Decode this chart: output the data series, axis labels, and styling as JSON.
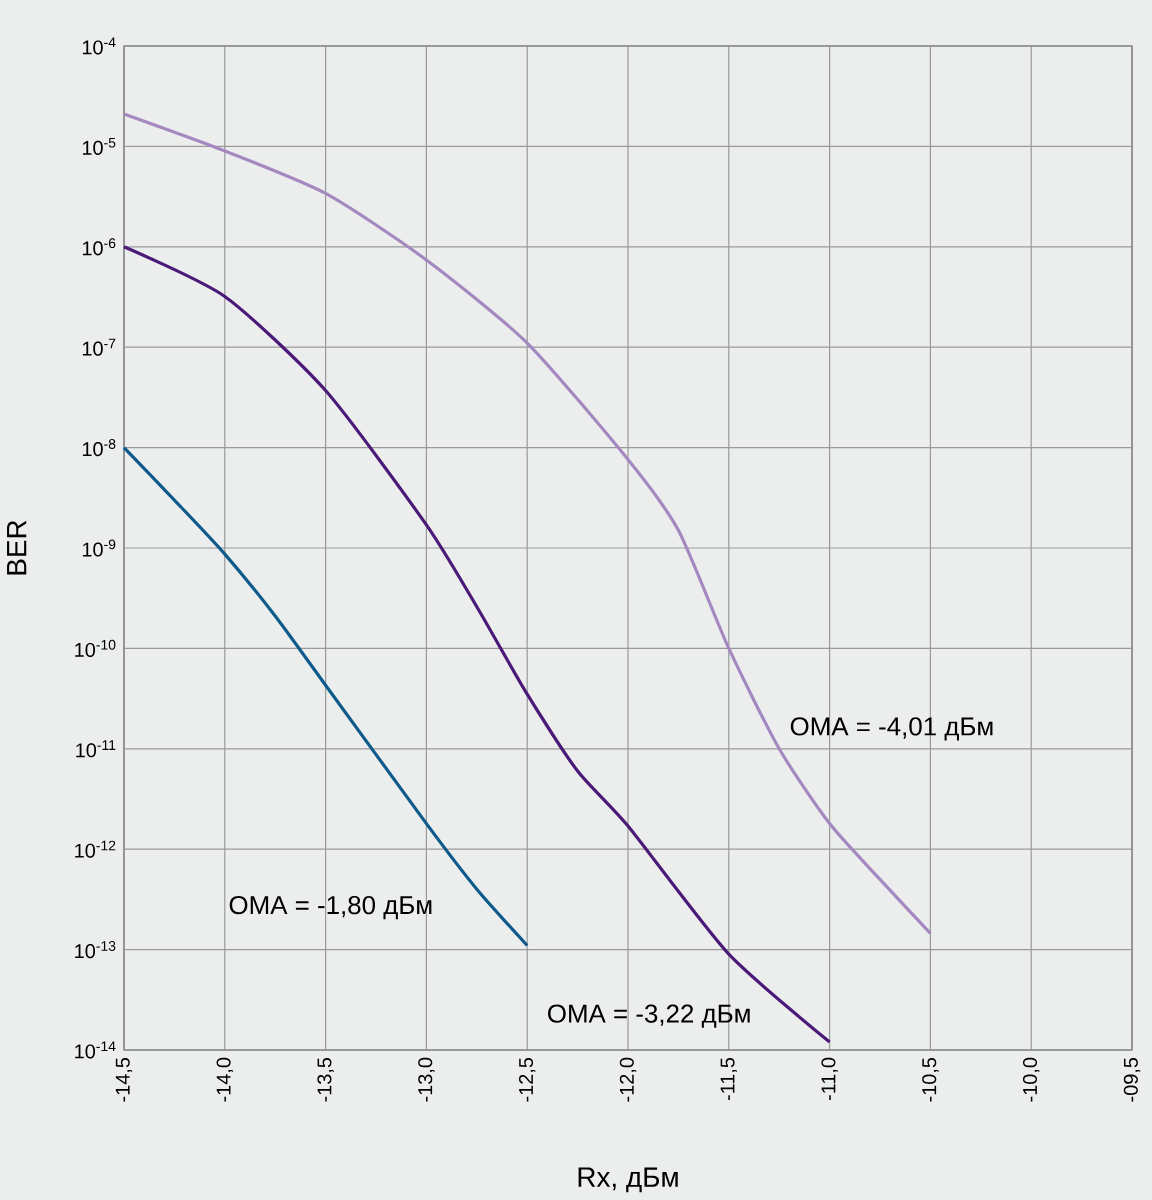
{
  "chart_data": {
    "type": "line",
    "xlabel": "Rx, дБм",
    "ylabel": "BER",
    "log": "y",
    "grid": true,
    "marker": "none",
    "line_style": "solid",
    "xlim": [
      -14.5,
      -9.5
    ],
    "ylim": [
      1e-14,
      0.0001
    ],
    "xticks": [
      {
        "value": -14.5,
        "label": "-14,5"
      },
      {
        "value": -14.0,
        "label": "-14,0"
      },
      {
        "value": -13.5,
        "label": "-13,5"
      },
      {
        "value": -13.0,
        "label": "-13,0"
      },
      {
        "value": -12.5,
        "label": "-12,5"
      },
      {
        "value": -12.0,
        "label": "-12,0"
      },
      {
        "value": -11.5,
        "label": "-11,5"
      },
      {
        "value": -11.0,
        "label": "-11,0"
      },
      {
        "value": -10.5,
        "label": "-10,5"
      },
      {
        "value": -10.0,
        "label": "-10,0"
      },
      {
        "value": -9.5,
        "label": "-09,5"
      }
    ],
    "yticks": [
      {
        "value": 1e-14,
        "label": "10$^{-14}$"
      },
      {
        "value": 1e-13,
        "label": "10$^{-13}$"
      },
      {
        "value": 1e-12,
        "label": "10$^{-12}$"
      },
      {
        "value": 1e-11,
        "label": "10$^{-11}$"
      },
      {
        "value": 1e-10,
        "label": "10$^{-10}$"
      },
      {
        "value": 1e-09,
        "label": "10$^{-9}$"
      },
      {
        "value": 1e-08,
        "label": "10$^{-8}$"
      },
      {
        "value": 1e-07,
        "label": "10$^{-7}$"
      },
      {
        "value": 1e-06,
        "label": "10$^{-6}$"
      },
      {
        "value": 1e-05,
        "label": "10$^{-5}$"
      },
      {
        "value": 0.0001,
        "label": "10$^{-4}$"
      }
    ],
    "series": [
      {
        "name": "OMA = -4,01 дБм",
        "color": "#a488c0",
        "x": [
          -14.5,
          -14.0,
          -13.5,
          -13.0,
          -12.5,
          -12.0,
          -11.75,
          -11.5,
          -11.25,
          -11.0,
          -10.75,
          -10.5
        ],
        "values": [
          2.1e-05,
          9e-06,
          3.4e-06,
          7.4e-07,
          1.1e-07,
          7.6e-09,
          1.5e-09,
          1e-10,
          1e-11,
          1.8e-12,
          5e-13,
          1.45e-13
        ]
      },
      {
        "name": "OMA = -3,22 дБм",
        "color": "#4b1a78",
        "x": [
          -14.5,
          -14.0,
          -13.5,
          -13.0,
          -12.75,
          -12.5,
          -12.25,
          -12.0,
          -11.5,
          -11.0
        ],
        "values": [
          1e-06,
          3.2e-07,
          3.7e-08,
          1.7e-09,
          2.6e-10,
          3.5e-11,
          6e-12,
          1.7e-12,
          9e-14,
          1.2e-14
        ]
      },
      {
        "name": "OMA = -1,80 дБм",
        "color": "#0e5a8a",
        "x": [
          -14.5,
          -14.25,
          -14.0,
          -13.75,
          -13.5,
          -13.0,
          -12.75,
          -12.5
        ],
        "values": [
          1e-08,
          3e-09,
          8.7e-10,
          2.1e-10,
          4.3e-11,
          1.8e-12,
          4e-13,
          1.1e-13
        ]
      }
    ]
  }
}
